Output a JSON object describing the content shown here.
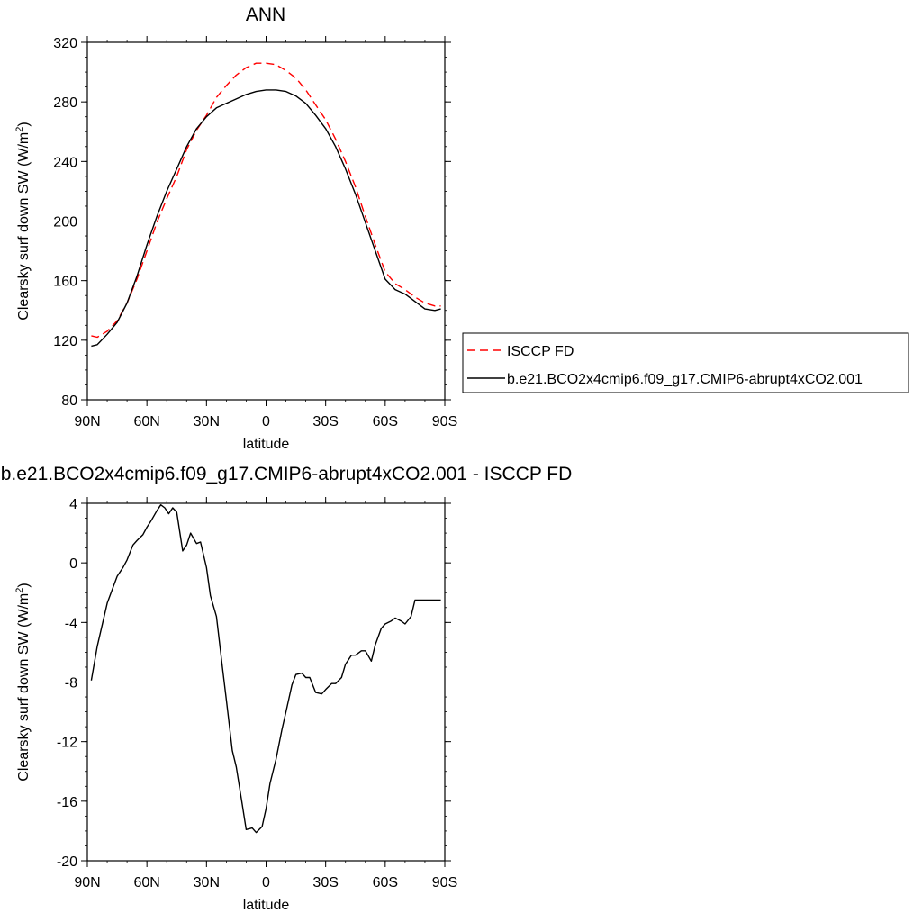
{
  "chart_data": [
    {
      "type": "line",
      "title": "ANN",
      "xlabel": "latitude",
      "ylabel_main": "Clearsky surf down SW (W/m",
      "ylabel_sup": "2",
      "ylabel_close": ")",
      "xlim": [
        90,
        -90
      ],
      "ylim": [
        80,
        320
      ],
      "x_tick_values": [
        90,
        60,
        30,
        0,
        -30,
        -60,
        -90
      ],
      "x_tick_labels": [
        "90N",
        "60N",
        "30N",
        "0",
        "30S",
        "60S",
        "90S"
      ],
      "y_tick_values": [
        80,
        120,
        160,
        200,
        240,
        280,
        320
      ],
      "y_tick_labels": [
        "80",
        "120",
        "160",
        "200",
        "240",
        "280",
        "320"
      ],
      "legend_position": "right",
      "series": [
        {
          "name": "ISCCP FD",
          "color": "#ff0000",
          "dash": "dashed",
          "x": [
            88,
            85,
            80,
            75,
            70,
            65,
            60,
            55,
            50,
            45,
            40,
            35,
            30,
            25,
            20,
            15,
            10,
            5,
            0,
            -5,
            -10,
            -15,
            -20,
            -25,
            -30,
            -35,
            -40,
            -45,
            -50,
            -55,
            -60,
            -65,
            -70,
            -75,
            -80,
            -85,
            -88
          ],
          "y": [
            123,
            122,
            126,
            133,
            145,
            161,
            180,
            199,
            215,
            230,
            248,
            261,
            271,
            283,
            291,
            298,
            303,
            306,
            306,
            305,
            301,
            296,
            288,
            278,
            268,
            255,
            240,
            223,
            203,
            184,
            166,
            158,
            154,
            149,
            145,
            143,
            143
          ]
        },
        {
          "name": "b.e21.BCO2x4cmip6.f09_g17.CMIP6-abrupt4xCO2.001",
          "color": "#000000",
          "dash": "solid",
          "x": [
            88,
            85,
            80,
            75,
            70,
            65,
            60,
            55,
            50,
            45,
            40,
            35,
            30,
            25,
            20,
            15,
            10,
            5,
            0,
            -5,
            -10,
            -15,
            -20,
            -25,
            -30,
            -35,
            -40,
            -45,
            -50,
            -55,
            -60,
            -65,
            -70,
            -75,
            -80,
            -85,
            -88
          ],
          "y": [
            116,
            117,
            124,
            132,
            145,
            163,
            184,
            203,
            220,
            235,
            250,
            262,
            270,
            276,
            279,
            282,
            285,
            287,
            288,
            288,
            287,
            284,
            279,
            271,
            262,
            250,
            235,
            218,
            199,
            180,
            161,
            154,
            151,
            146,
            141,
            140,
            141
          ]
        }
      ]
    },
    {
      "type": "line",
      "title": "b.e21.BCO2x4cmip6.f09_g17.CMIP6-abrupt4xCO2.001 - ISCCP FD",
      "xlabel": "latitude",
      "ylabel_main": "Clearsky surf down SW (W/m",
      "ylabel_sup": "2",
      "ylabel_close": ")",
      "xlim": [
        90,
        -90
      ],
      "ylim": [
        -20,
        4
      ],
      "x_tick_values": [
        90,
        60,
        30,
        0,
        -30,
        -60,
        -90
      ],
      "x_tick_labels": [
        "90N",
        "60N",
        "30N",
        "0",
        "30S",
        "60S",
        "90S"
      ],
      "y_tick_values": [
        -20,
        -16,
        -12,
        -8,
        -4,
        0,
        4
      ],
      "y_tick_labels": [
        "-20",
        "-16",
        "-12",
        "-8",
        "-4",
        "0",
        "4"
      ],
      "series": [
        {
          "color": "#000000",
          "dash": "solid",
          "x": [
            88,
            85,
            80,
            75,
            72,
            70,
            67,
            65,
            62,
            60,
            58,
            55,
            53,
            51,
            49,
            47,
            45,
            42,
            40,
            38,
            35,
            33,
            30,
            28,
            25,
            22,
            20,
            17,
            15,
            12,
            10,
            7,
            5,
            2,
            0,
            -2,
            -5,
            -8,
            -10,
            -13,
            -15,
            -18,
            -20,
            -22,
            -25,
            -28,
            -30,
            -33,
            -35,
            -38,
            -40,
            -43,
            -45,
            -48,
            -50,
            -53,
            -55,
            -58,
            -60,
            -63,
            -65,
            -68,
            -70,
            -73,
            -75,
            -78,
            -80,
            -83,
            -85,
            -88
          ],
          "y": [
            -7.9,
            -5.6,
            -2.7,
            -0.9,
            -0.3,
            0.2,
            1.2,
            1.5,
            1.9,
            2.4,
            2.8,
            3.5,
            3.9,
            3.7,
            3.3,
            3.7,
            3.4,
            0.8,
            1.2,
            2.0,
            1.3,
            1.4,
            -0.3,
            -2.2,
            -3.6,
            -7.0,
            -9.2,
            -12.6,
            -13.7,
            -16.2,
            -17.9,
            -17.8,
            -18.1,
            -17.7,
            -16.5,
            -14.8,
            -13.2,
            -11.2,
            -10.0,
            -8.2,
            -7.5,
            -7.4,
            -7.7,
            -7.7,
            -8.7,
            -8.8,
            -8.5,
            -8.1,
            -8.1,
            -7.7,
            -6.8,
            -6.2,
            -6.2,
            -5.9,
            -5.9,
            -6.6,
            -5.5,
            -4.4,
            -4.1,
            -3.9,
            -3.7,
            -3.9,
            -4.1,
            -3.6,
            -2.5,
            -2.5,
            -2.5,
            -2.5,
            -2.5,
            -2.5
          ]
        }
      ]
    }
  ],
  "legend": {
    "entries": [
      {
        "label": "ISCCP FD",
        "color": "#ff0000",
        "dash": "dashed"
      },
      {
        "label": "b.e21.BCO2x4cmip6.f09_g17.CMIP6-abrupt4xCO2.001",
        "color": "#000000",
        "dash": "solid"
      }
    ]
  }
}
